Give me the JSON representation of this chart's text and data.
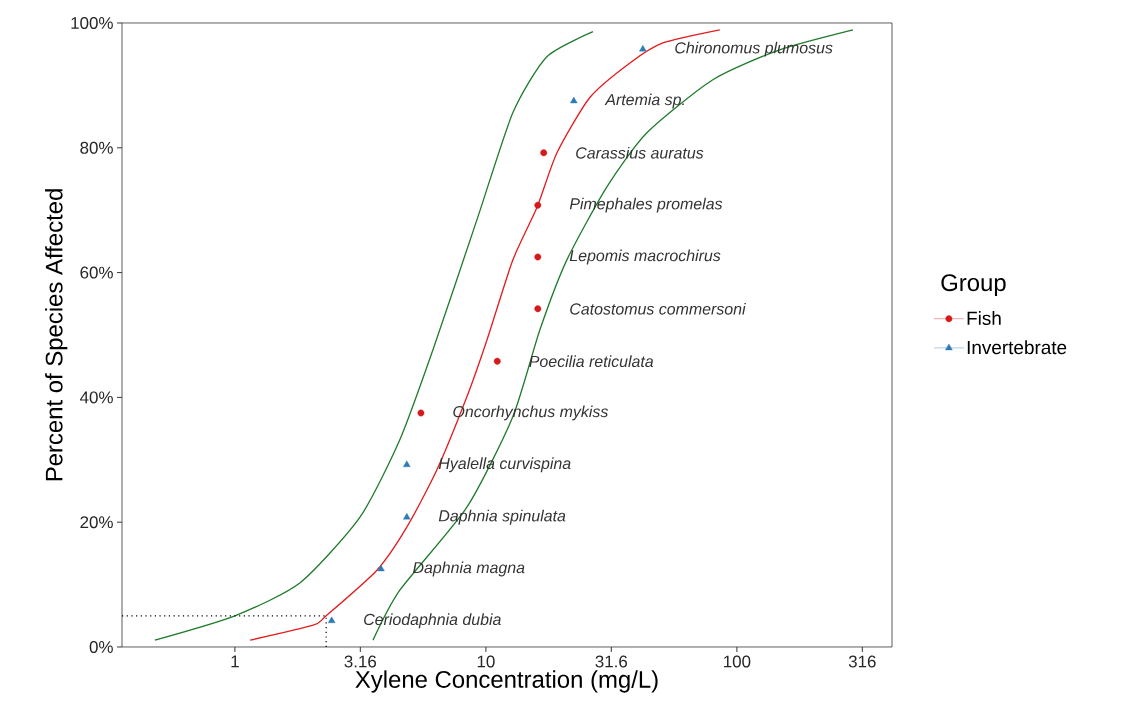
{
  "chart_data": {
    "type": "scatter",
    "xlabel": "Xylene Concentration (mg/L)",
    "ylabel": "Percent of Species Affected",
    "legend_title": "Group",
    "legend": "right",
    "log": "x",
    "xlim": [
      0.355,
      415
    ],
    "xticks": [
      1,
      3.16,
      10,
      31.6,
      100,
      316
    ],
    "ylim": [
      0,
      100
    ],
    "yticks": [
      {
        "value": 0,
        "label": "0%"
      },
      {
        "value": 20,
        "label": "20%"
      },
      {
        "value": 40,
        "label": "40%"
      },
      {
        "value": 60,
        "label": "60%"
      },
      {
        "value": 80,
        "label": "80%"
      },
      {
        "value": 100,
        "label": "100%"
      }
    ],
    "series": [
      {
        "type": "line",
        "color": "#1e7b2a",
        "marker": "none",
        "x": [
          0.48,
          1.0,
          1.82,
          3.15,
          4.54,
          6.15,
          9.2,
          12.8,
          17.5,
          26.7
        ],
        "values": [
          1.1,
          5,
          10.3,
          20.8,
          33.2,
          47.6,
          68.4,
          85.6,
          94.6,
          98.6
        ]
      },
      {
        "type": "line",
        "color": "#1e7b2a",
        "marker": "none",
        "x": [
          3.55,
          4.54,
          8.4,
          12.8,
          16.4,
          21.0,
          30.3,
          43.8,
          80.2,
          148,
          290
        ],
        "values": [
          1.1,
          9.1,
          22.4,
          36.9,
          50.8,
          62.0,
          73.7,
          82.4,
          90.9,
          95.7,
          98.9
        ]
      },
      {
        "type": "line",
        "color": "#e41a1c",
        "marker": "none",
        "x": [
          1.15,
          2.05,
          2.31,
          3.68,
          4.84,
          6.38,
          8.4,
          10.1,
          12.8,
          16.0,
          19.2,
          26.0,
          37.5,
          50.7,
          85.5
        ],
        "values": [
          1.1,
          3.5,
          5,
          12.3,
          19.2,
          28.4,
          40.1,
          49.2,
          62.0,
          70.5,
          79.2,
          88.1,
          93.6,
          96.8,
          98.9
        ]
      },
      {
        "type": "line",
        "color": "#000000",
        "marker": "none",
        "line_style": "dotted",
        "x": [
          0.355,
          2.31,
          2.31
        ],
        "values": [
          5,
          5,
          0
        ]
      },
      {
        "name": "Fish",
        "color": "#d7191c",
        "marker": "circle",
        "x": [
          5.51,
          11.1,
          16.1,
          16.1,
          16.1,
          17.0
        ],
        "values": [
          37.5,
          45.8,
          54.2,
          62.5,
          70.8,
          79.2
        ]
      },
      {
        "name": "Invertebrate",
        "color": "#2c7bb6",
        "marker": "triangle",
        "x": [
          2.43,
          3.82,
          4.84,
          4.84,
          22.4,
          42.2
        ],
        "values": [
          4.2,
          12.5,
          20.8,
          29.2,
          87.5,
          95.8
        ]
      }
    ],
    "annotations": [
      {
        "text": "Ceriodaphnia dubia",
        "x": 2.43,
        "y": 4.2
      },
      {
        "text": "Daphnia magna",
        "x": 3.82,
        "y": 12.5
      },
      {
        "text": "Daphnia spinulata",
        "x": 4.84,
        "y": 20.8
      },
      {
        "text": "Hyalella curvispina",
        "x": 4.84,
        "y": 29.2
      },
      {
        "text": "Oncorhynchus mykiss",
        "x": 5.51,
        "y": 37.5
      },
      {
        "text": "Poecilia reticulata",
        "x": 11.1,
        "y": 45.8
      },
      {
        "text": "Catostomus commersoni",
        "x": 16.1,
        "y": 54.2
      },
      {
        "text": "Lepomis macrochirus",
        "x": 16.1,
        "y": 62.5
      },
      {
        "text": "Pimephales promelas",
        "x": 16.1,
        "y": 70.8
      },
      {
        "text": "Carassius auratus",
        "x": 17.0,
        "y": 79.2
      },
      {
        "text": "Artemia sp.",
        "x": 22.4,
        "y": 87.5
      },
      {
        "text": "Chironomus plumosus",
        "x": 42.2,
        "y": 95.8
      }
    ]
  }
}
